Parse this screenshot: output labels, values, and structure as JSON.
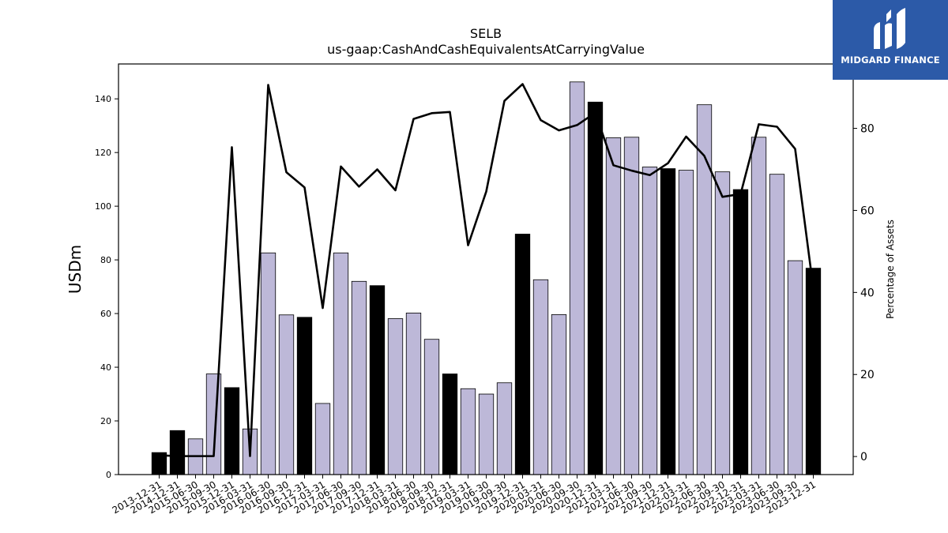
{
  "brand": {
    "name": "MIDGARD FINANCE",
    "color": "#2c5aa8"
  },
  "chart_data": {
    "type": "bar",
    "title": "SELB",
    "subtitle": "us-gaap:CashAndCashEquivalentsAtCarryingValue",
    "ylabel": "USDm",
    "y2label": "Percentage of Assets",
    "ylim": [
      0,
      153
    ],
    "y2lim": [
      -4.4,
      95.7
    ],
    "yticks": [
      0,
      20,
      40,
      60,
      80,
      100,
      120,
      140
    ],
    "y2ticks": [
      0,
      20,
      40,
      60,
      80
    ],
    "grid": false,
    "colors": {
      "annual": "#000000",
      "quarter": "#bdb8d8",
      "line": "#000000",
      "edge": "#000000"
    },
    "categories": [
      "2013-12-31",
      "2014-12-31",
      "2015-06-30",
      "2015-09-30",
      "2015-12-31",
      "2016-03-31",
      "2016-06-30",
      "2016-09-30",
      "2016-12-31",
      "2017-03-31",
      "2017-06-30",
      "2017-09-30",
      "2017-12-31",
      "2018-03-31",
      "2018-06-30",
      "2018-09-30",
      "2018-12-31",
      "2019-03-31",
      "2019-06-30",
      "2019-09-30",
      "2019-12-31",
      "2020-03-31",
      "2020-06-30",
      "2020-09-30",
      "2020-12-31",
      "2021-03-31",
      "2021-06-30",
      "2021-09-30",
      "2021-12-31",
      "2022-03-31",
      "2022-06-30",
      "2022-09-30",
      "2022-12-31",
      "2023-03-31",
      "2023-06-30",
      "2023-09-30",
      "2023-12-31"
    ],
    "series": [
      {
        "type": "bar",
        "values": [
          8.2,
          16.4,
          13.3,
          37.5,
          32.4,
          17.0,
          82.6,
          59.5,
          58.6,
          26.5,
          82.6,
          72.0,
          70.4,
          58.1,
          60.2,
          50.4,
          37.5,
          32.0,
          30.0,
          34.2,
          89.6,
          72.6,
          59.6,
          146.3,
          138.8,
          125.5,
          125.7,
          114.6,
          114.0,
          113.4,
          137.8,
          112.8,
          106.2,
          125.7,
          111.9,
          79.7,
          76.9
        ],
        "annual": [
          true,
          true,
          false,
          false,
          true,
          false,
          false,
          false,
          true,
          false,
          false,
          false,
          true,
          false,
          false,
          false,
          true,
          false,
          false,
          false,
          true,
          false,
          false,
          false,
          true,
          false,
          false,
          false,
          true,
          false,
          false,
          false,
          true,
          false,
          false,
          false,
          true
        ]
      },
      {
        "type": "line",
        "axis": "right",
        "values": [
          0.3,
          0.1,
          0.1,
          0.1,
          75.4,
          0.1,
          90.6,
          69.3,
          65.6,
          36.2,
          70.7,
          65.8,
          70.0,
          64.9,
          82.3,
          83.7,
          84.0,
          51.5,
          64.6,
          86.7,
          90.8,
          82.0,
          79.5,
          80.8,
          83.8,
          71.0,
          69.7,
          68.6,
          71.5,
          78.0,
          73.3,
          63.3,
          64.0,
          81.0,
          80.4,
          75.0,
          41.0
        ]
      }
    ]
  }
}
